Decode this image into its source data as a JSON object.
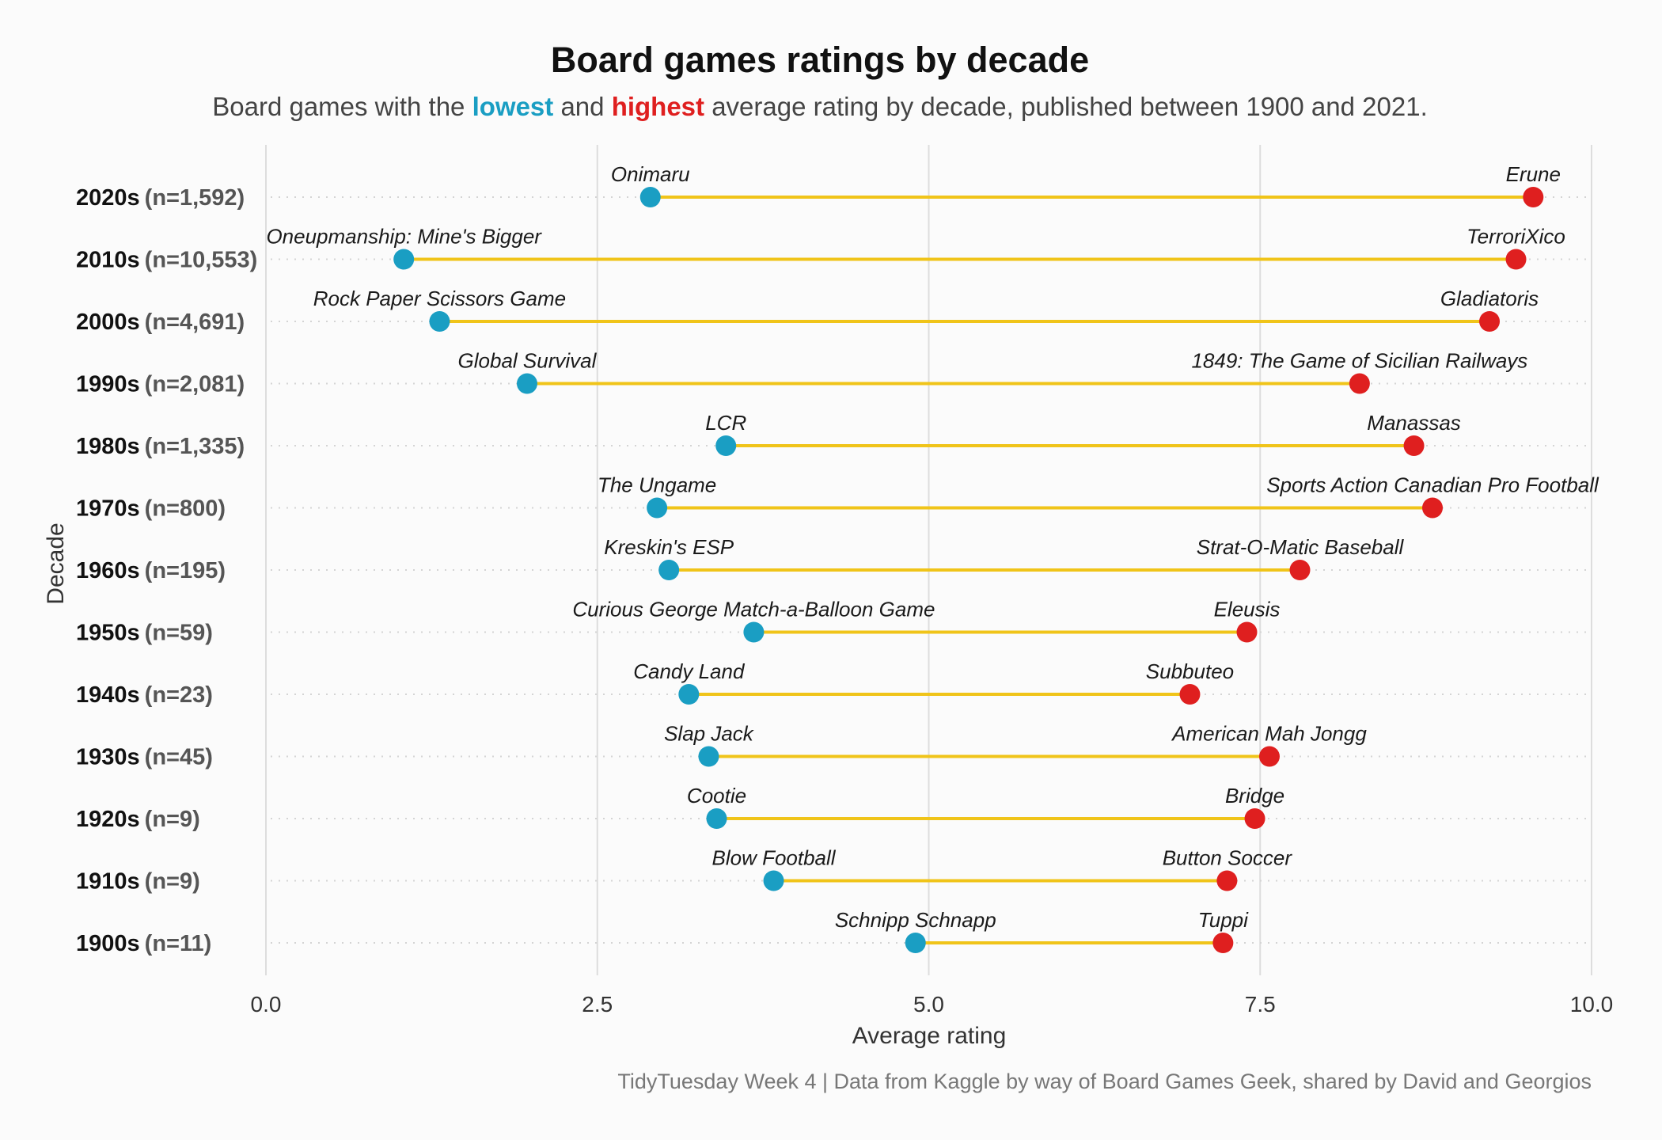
{
  "title": "Board games ratings by decade",
  "subtitle": {
    "part1": "Board games with the ",
    "low_word": "lowest",
    "part2": " and ",
    "high_word": "highest",
    "part3": " average rating by decade, published between 1900 and 2021."
  },
  "caption": "TidyTuesday Week 4  |  Data from Kaggle by way of Board Games Geek, shared by David and Georgios",
  "colors": {
    "low": "#1a9ec3",
    "high": "#df1f1f",
    "segment": "#f0c419",
    "gridline": "#dddddd",
    "dotted": "#d4d4d4"
  },
  "chart_data": {
    "type": "dumbbell",
    "xlabel": "Average rating",
    "ylabel": "Decade",
    "xlim": [
      0,
      10
    ],
    "xticks": [
      0,
      2.5,
      5,
      7.5,
      10
    ],
    "xtick_labels": [
      "0.0",
      "2.5",
      "5.0",
      "7.5",
      "10.0"
    ],
    "grid": true,
    "series": [
      {
        "name": "lowest",
        "color": "#1a9ec3"
      },
      {
        "name": "highest",
        "color": "#df1f1f"
      }
    ],
    "rows": [
      {
        "decade": "2020s",
        "count": "(n=1,592)",
        "low_game": "Onimaru",
        "low": 2.9,
        "high_game": "Erune",
        "high": 9.56
      },
      {
        "decade": "2010s",
        "count": "(n=10,553)",
        "low_game": "Oneupmanship: Mine's Bigger",
        "low": 1.04,
        "high_game": "TerroriXico",
        "high": 9.43
      },
      {
        "decade": "2000s",
        "count": "(n=4,691)",
        "low_game": "Rock Paper Scissors Game",
        "low": 1.31,
        "high_game": "Gladiatoris",
        "high": 9.23
      },
      {
        "decade": "1990s",
        "count": "(n=2,081)",
        "low_game": "Global Survival",
        "low": 1.97,
        "high_game": "1849: The Game of Sicilian Railways",
        "high": 8.25
      },
      {
        "decade": "1980s",
        "count": "(n=1,335)",
        "low_game": "LCR",
        "low": 3.47,
        "high_game": "Manassas",
        "high": 8.66
      },
      {
        "decade": "1970s",
        "count": "(n=800)",
        "low_game": "The Ungame",
        "low": 2.95,
        "high_game": "Sports Action Canadian Pro Football",
        "high": 8.8
      },
      {
        "decade": "1960s",
        "count": "(n=195)",
        "low_game": "Kreskin's ESP",
        "low": 3.04,
        "high_game": "Strat-O-Matic Baseball",
        "high": 7.8
      },
      {
        "decade": "1950s",
        "count": "(n=59)",
        "low_game": "Curious George Match-a-Balloon Game",
        "low": 3.68,
        "high_game": "Eleusis",
        "high": 7.4
      },
      {
        "decade": "1940s",
        "count": "(n=23)",
        "low_game": "Candy Land",
        "low": 3.19,
        "high_game": "Subbuteo",
        "high": 6.97
      },
      {
        "decade": "1930s",
        "count": "(n=45)",
        "low_game": "Slap Jack",
        "low": 3.34,
        "high_game": "American Mah Jongg",
        "high": 7.57
      },
      {
        "decade": "1920s",
        "count": "(n=9)",
        "low_game": "Cootie",
        "low": 3.4,
        "high_game": "Bridge",
        "high": 7.46
      },
      {
        "decade": "1910s",
        "count": "(n=9)",
        "low_game": "Blow Football",
        "low": 3.83,
        "high_game": "Button Soccer",
        "high": 7.25
      },
      {
        "decade": "1900s",
        "count": "(n=11)",
        "low_game": "Schnipp Schnapp",
        "low": 4.9,
        "high_game": "Tuppi",
        "high": 7.22
      }
    ]
  }
}
